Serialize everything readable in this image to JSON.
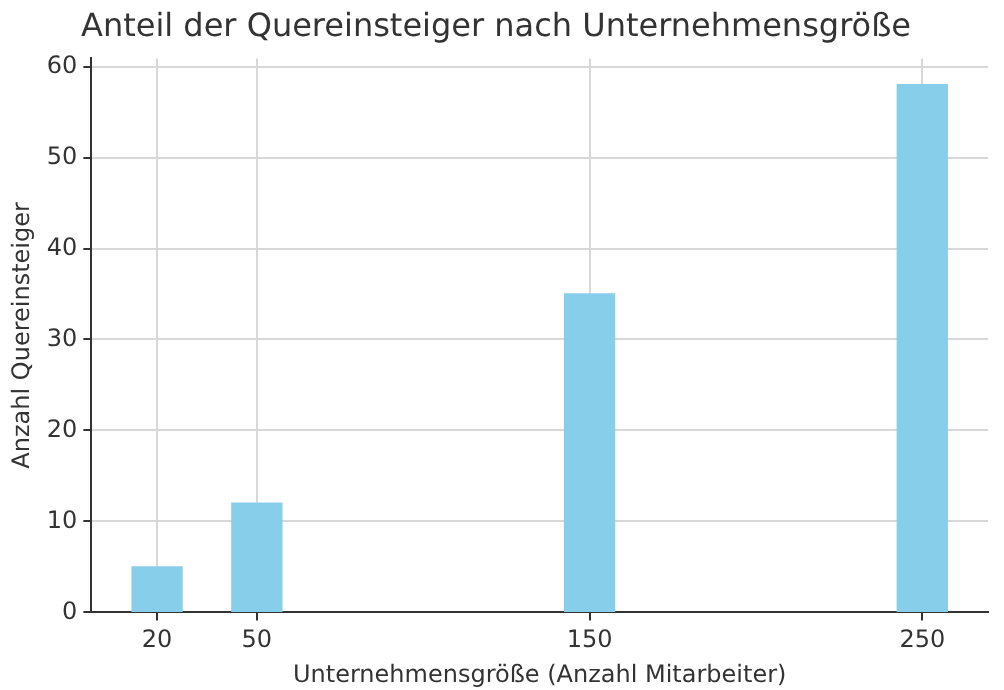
{
  "chart_data": {
    "type": "bar",
    "title": "Anteil der Quereinsteiger nach Unternehmensgröße",
    "xlabel": "Unternehmensgröße (Anzahl Mitarbeiter)",
    "ylabel": "Anzahl Quereinsteiger",
    "x": [
      20,
      50,
      150,
      250
    ],
    "values": [
      5,
      12,
      35,
      58
    ],
    "color": "#87ceeb",
    "xlim": [
      0.25,
      269.75
    ],
    "xticks": [
      20,
      50,
      150,
      250
    ],
    "ylim": [
      0,
      60.9
    ],
    "yticks": [
      0,
      10,
      20,
      30,
      40,
      50,
      60
    ],
    "grid": true,
    "legend": false
  }
}
